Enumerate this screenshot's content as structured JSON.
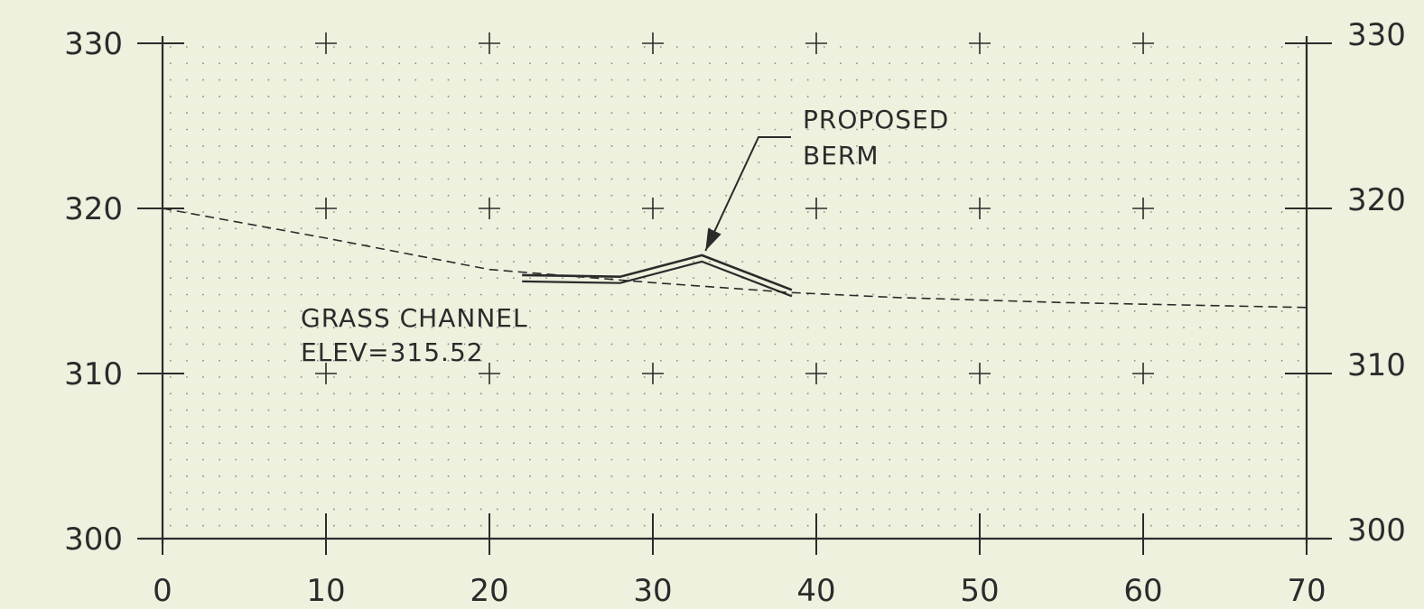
{
  "chart_data": {
    "type": "profile",
    "x_ticks": [
      0,
      10,
      20,
      30,
      40,
      50,
      60,
      70
    ],
    "y_ticks": [
      300,
      310,
      320,
      330
    ],
    "xlim": [
      0,
      70
    ],
    "ylim": [
      300,
      330
    ],
    "grid": "dotted",
    "existing_ground": {
      "style": "dashed",
      "points": [
        [
          0,
          320
        ],
        [
          10,
          318.2
        ],
        [
          20,
          316.3
        ],
        [
          30,
          315.5
        ],
        [
          38.5,
          314.9
        ],
        [
          45,
          314.6
        ],
        [
          55,
          314.3
        ],
        [
          70,
          314.0
        ]
      ]
    },
    "proposed_berm": {
      "style": "double-line",
      "points": [
        [
          22,
          315.8
        ],
        [
          28,
          315.7
        ],
        [
          33,
          317.0
        ],
        [
          38.5,
          314.9
        ]
      ]
    },
    "annotations": {
      "berm_label_line1": "PROPOSED",
      "berm_label_line2": "BERM",
      "channel_label_line1": "GRASS CHANNEL",
      "channel_label_line2": "ELEV=315.52"
    }
  },
  "colors": {
    "background": "#eef1de",
    "ink": "#2b2b2b",
    "grid_dot": "#8a8a8a"
  }
}
